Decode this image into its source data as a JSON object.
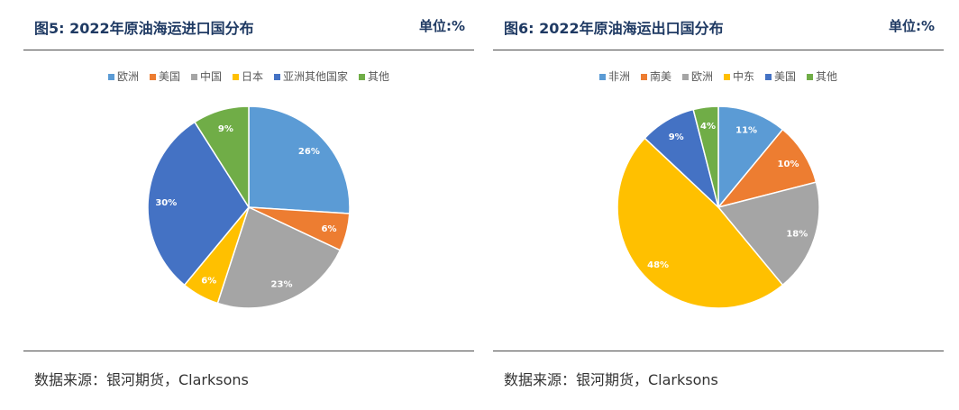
{
  "charts": [
    {
      "title": "图5: 2022年原油海运进口国分布",
      "unit": "单位:%",
      "source": "数据来源：银河期货，Clarksons"
    },
    {
      "title": "图6: 2022年原油海运出口国分布",
      "unit": "单位:%",
      "source": "数据来源：银河期货，Clarksons"
    }
  ],
  "chart_data": [
    {
      "type": "pie",
      "categories": [
        "欧洲",
        "美国",
        "中国",
        "日本",
        "亚洲其他国家",
        "其他"
      ],
      "values": [
        26,
        6,
        23,
        6,
        30,
        9
      ],
      "labels": [
        "26%",
        "6%",
        "23%",
        "6%",
        "30%",
        "9%"
      ],
      "colors": [
        "#5b9bd5",
        "#ed7d31",
        "#a5a5a5",
        "#ffc000",
        "#4472c4",
        "#70ad47"
      ],
      "legend": "top"
    },
    {
      "type": "pie",
      "categories": [
        "非洲",
        "南美",
        "欧洲",
        "中东",
        "美国",
        "其他"
      ],
      "values": [
        11,
        10,
        18,
        48,
        9,
        4
      ],
      "labels": [
        "11%",
        "10%",
        "18%",
        "48%",
        "9%",
        "4%"
      ],
      "colors": [
        "#5b9bd5",
        "#ed7d31",
        "#a5a5a5",
        "#ffc000",
        "#4472c4",
        "#70ad47"
      ],
      "legend": "top"
    }
  ]
}
